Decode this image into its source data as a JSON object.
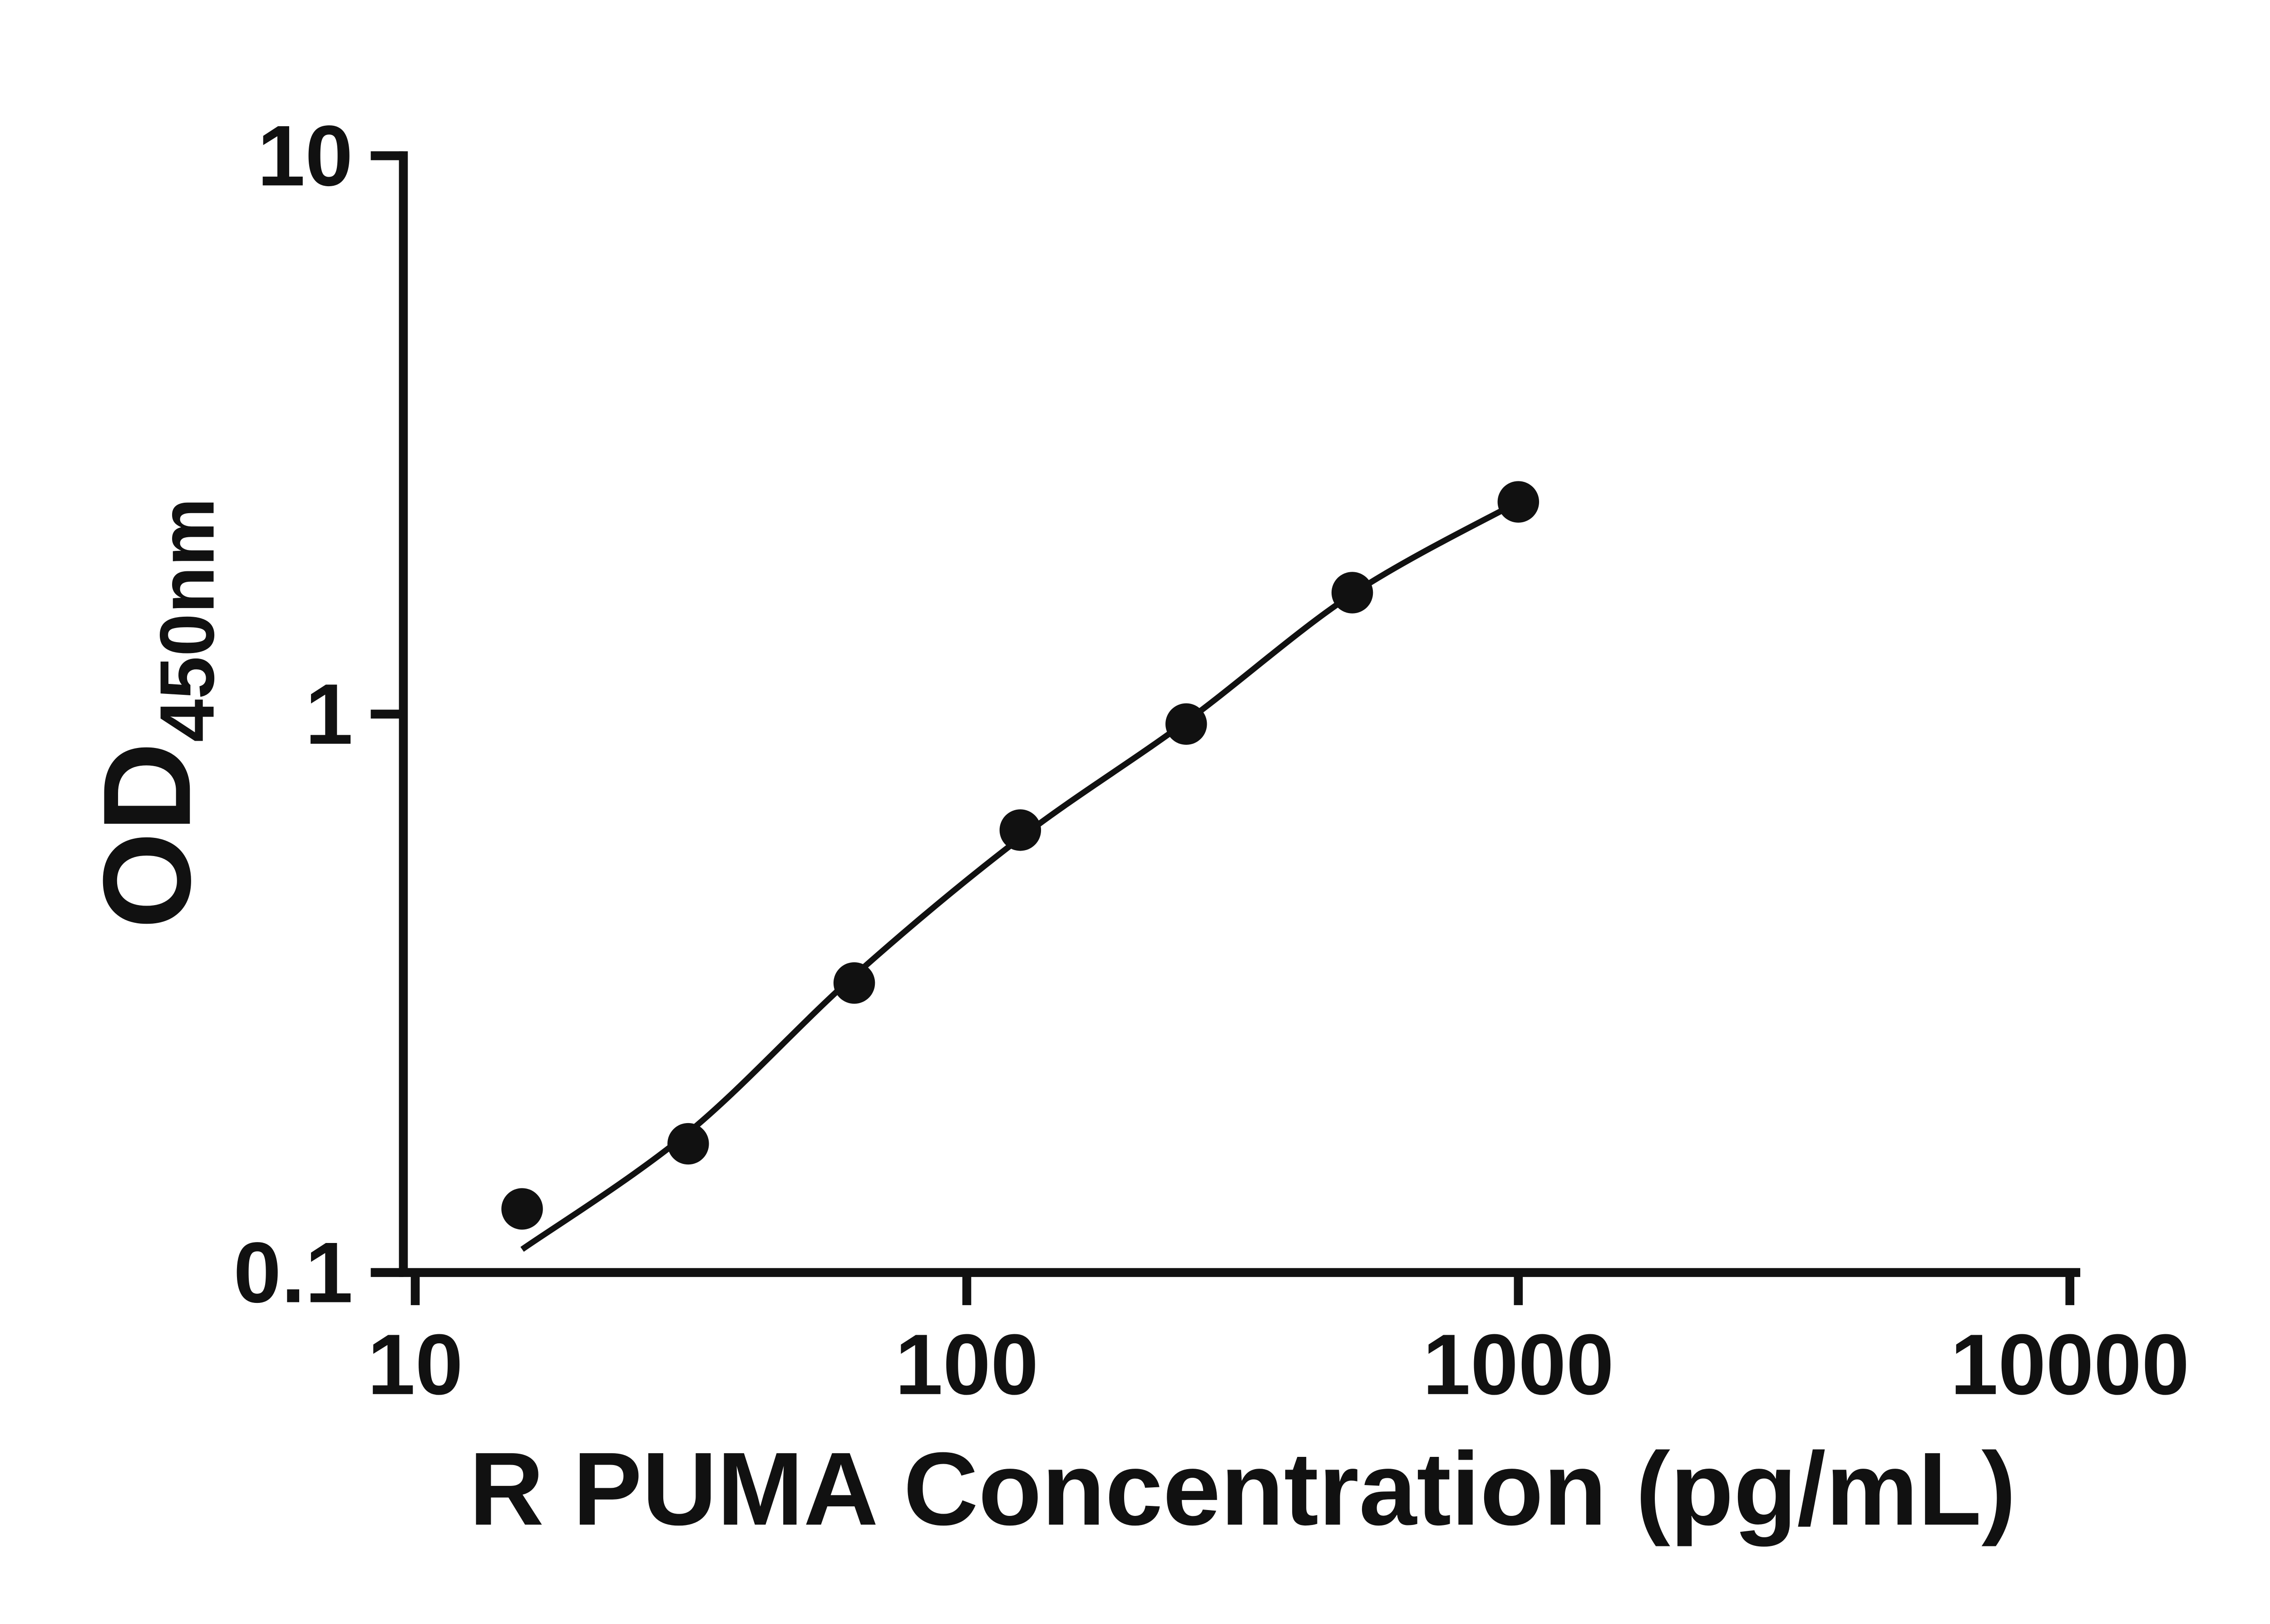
{
  "chart_data": {
    "type": "scatter",
    "title": "",
    "xlabel": "R PUMA Concentration (pg/mL)",
    "ylabel_main": "OD",
    "ylabel_sub": "450nm",
    "x_scale": "log",
    "y_scale": "log",
    "xlim": [
      10,
      10000
    ],
    "ylim": [
      0.1,
      10
    ],
    "x_ticks": [
      "10",
      "100",
      "1000",
      "10000"
    ],
    "y_ticks": [
      "0.1",
      "1",
      "10"
    ],
    "grid": false,
    "legend": null,
    "series": [
      {
        "name": "standard-curve-points",
        "x": [
          15.625,
          31.25,
          62.5,
          125,
          250,
          500,
          1000
        ],
        "y": [
          0.13,
          0.17,
          0.33,
          0.62,
          0.96,
          1.65,
          2.4
        ]
      }
    ],
    "fit_line": {
      "x": [
        15.625,
        31.25,
        62.5,
        125,
        250,
        500,
        1000
      ],
      "y": [
        0.11,
        0.178,
        0.34,
        0.6,
        0.97,
        1.64,
        2.4
      ]
    },
    "marker_color": "#111111",
    "line_color": "#111111",
    "axis_color": "#111111",
    "background_color": "#ffffff"
  }
}
